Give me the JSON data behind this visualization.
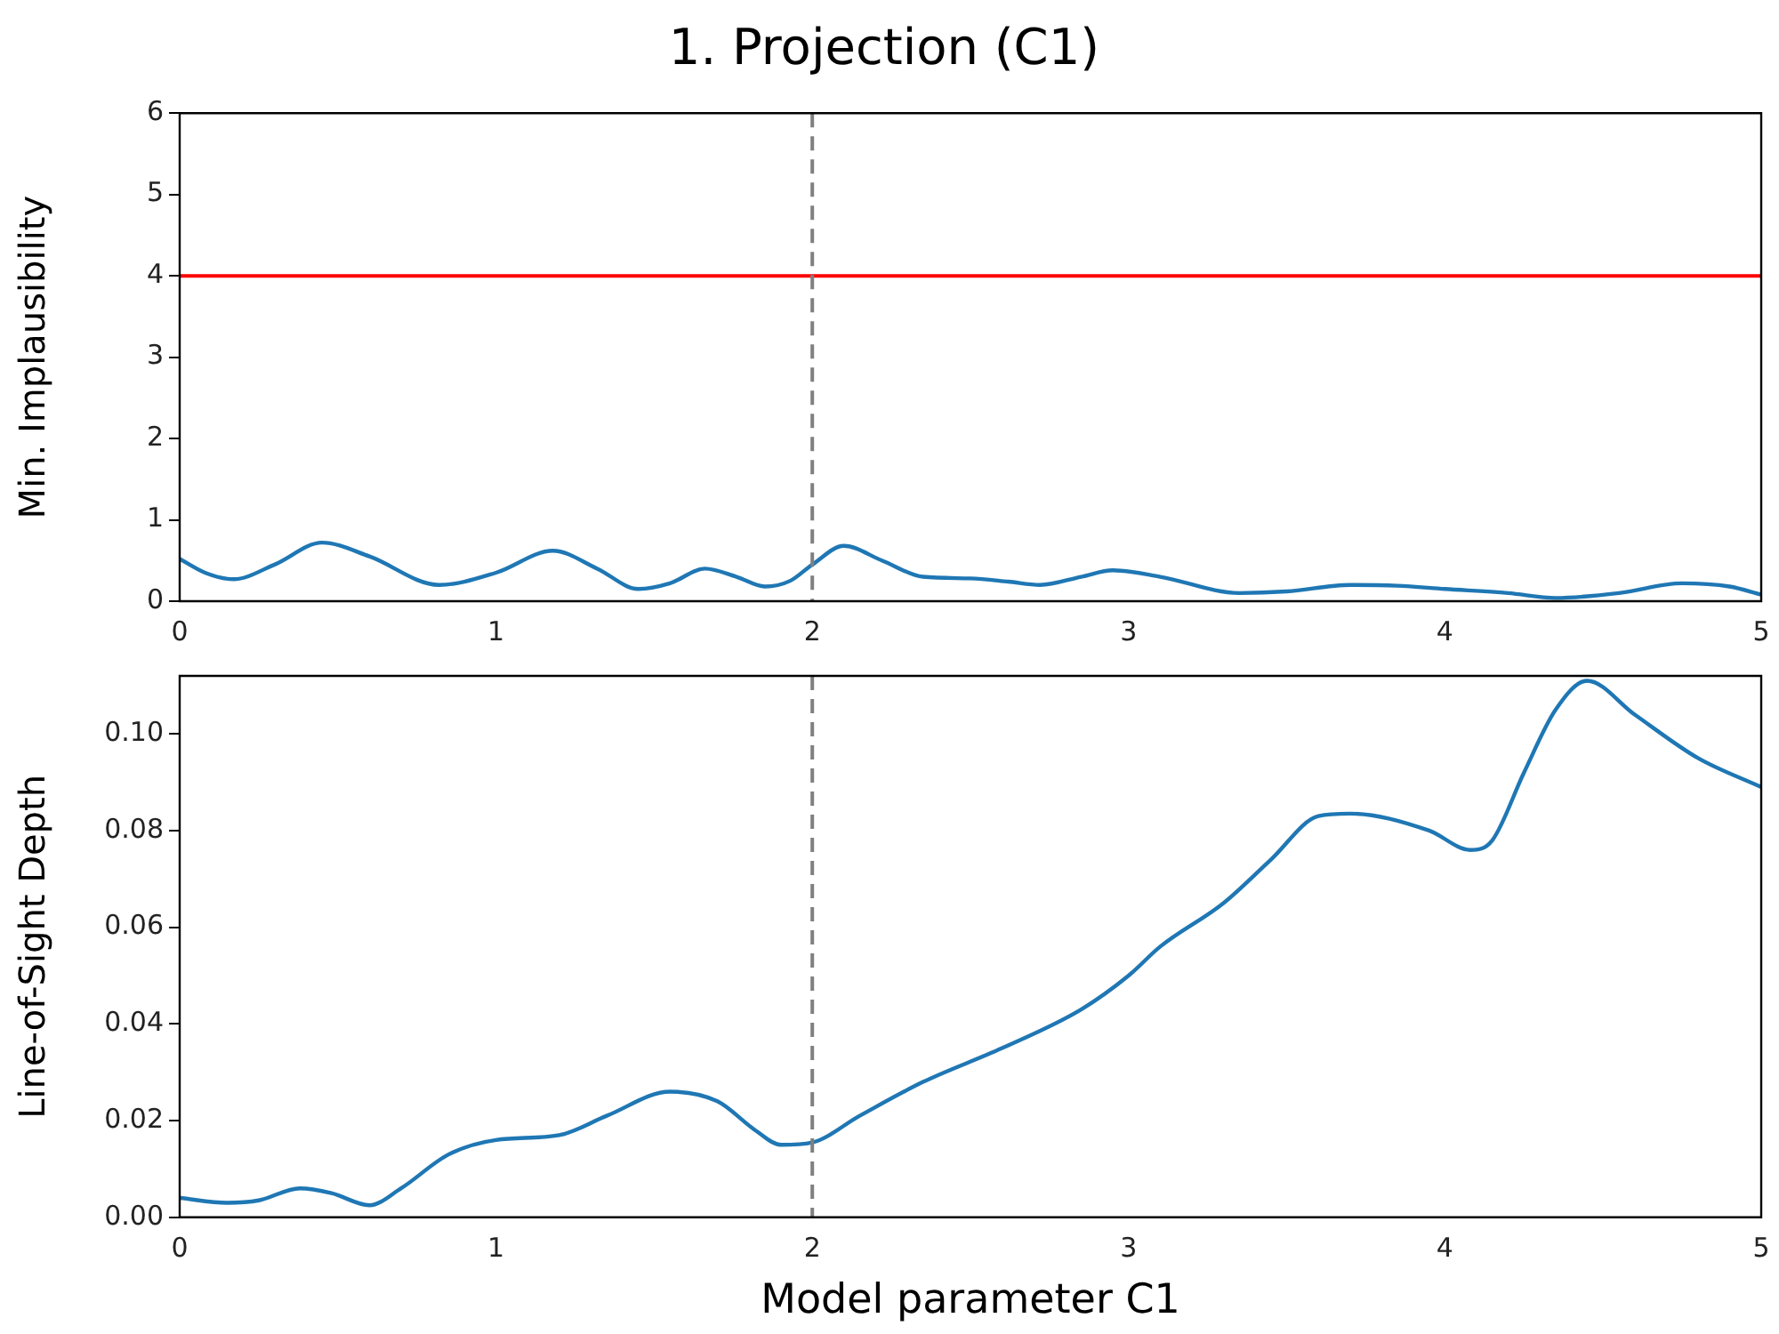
{
  "chart_data": [
    {
      "type": "line",
      "title": "1. Projection (C1)",
      "ylabel": "Min. Implausibility",
      "xlim": [
        0,
        5
      ],
      "xticks": [
        0,
        1,
        2,
        3,
        4,
        5
      ],
      "ylim": [
        0,
        6
      ],
      "yticks": [
        0,
        1,
        2,
        3,
        4,
        5,
        6
      ],
      "grid": false,
      "legend": false,
      "marker": "none",
      "line_style": "solid",
      "series": [
        {
          "color": "#1f77b4",
          "x": [
            0,
            0.08,
            0.17,
            0.3,
            0.45,
            0.6,
            0.82,
            1.0,
            1.18,
            1.32,
            1.45,
            1.55,
            1.66,
            1.76,
            1.85,
            1.93,
            2.0,
            2.1,
            2.22,
            2.35,
            2.5,
            2.62,
            2.72,
            2.85,
            2.95,
            3.1,
            3.35,
            3.5,
            3.7,
            3.85,
            4.0,
            4.2,
            4.35,
            4.55,
            4.75,
            4.9,
            5
          ],
          "values": [
            0.52,
            0.35,
            0.27,
            0.45,
            0.72,
            0.55,
            0.2,
            0.35,
            0.62,
            0.4,
            0.15,
            0.22,
            0.4,
            0.3,
            0.18,
            0.25,
            0.45,
            0.68,
            0.5,
            0.3,
            0.28,
            0.24,
            0.2,
            0.3,
            0.38,
            0.3,
            0.1,
            0.12,
            0.2,
            0.19,
            0.15,
            0.1,
            0.04,
            0.1,
            0.22,
            0.18,
            0.08
          ]
        }
      ],
      "ref_lines": [
        {
          "axis": "y",
          "value": 4,
          "color": "#ff0000",
          "line_style": "solid"
        },
        {
          "axis": "x",
          "value": 2,
          "color": "#808080",
          "line_style": "dashed"
        }
      ]
    },
    {
      "type": "line",
      "xlabel": "Model parameter C1",
      "ylabel": "Line-of-Sight Depth",
      "xlim": [
        0,
        5
      ],
      "xticks": [
        0,
        1,
        2,
        3,
        4,
        5
      ],
      "ylim": [
        0,
        0.112
      ],
      "yticks": [
        {
          "value": 0,
          "label": "0.00"
        },
        {
          "value": 0.02,
          "label": "0.02"
        },
        {
          "value": 0.04,
          "label": "0.04"
        },
        {
          "value": 0.06,
          "label": "0.06"
        },
        {
          "value": 0.08,
          "label": "0.08"
        },
        {
          "value": 0.1,
          "label": "0.10"
        }
      ],
      "grid": false,
      "legend": false,
      "marker": "none",
      "line_style": "solid",
      "series": [
        {
          "color": "#1f77b4",
          "x": [
            0,
            0.15,
            0.25,
            0.38,
            0.48,
            0.6,
            0.7,
            0.85,
            1.0,
            1.2,
            1.35,
            1.55,
            1.7,
            1.82,
            1.9,
            2.0,
            2.15,
            2.35,
            2.6,
            2.85,
            3.0,
            3.1,
            3.3,
            3.45,
            3.6,
            3.7,
            3.95,
            4.08,
            4.15,
            4.25,
            4.35,
            4.45,
            4.6,
            4.8,
            5
          ],
          "values": [
            0.004,
            0.003,
            0.0035,
            0.006,
            0.005,
            0.0025,
            0.006,
            0.013,
            0.016,
            0.017,
            0.021,
            0.026,
            0.024,
            0.018,
            0.015,
            0.0155,
            0.021,
            0.028,
            0.035,
            0.043,
            0.05,
            0.056,
            0.065,
            0.074,
            0.083,
            0.0835,
            0.08,
            0.076,
            0.078,
            0.092,
            0.105,
            0.111,
            0.104,
            0.095,
            0.089
          ]
        }
      ],
      "ref_lines": [
        {
          "axis": "x",
          "value": 2,
          "color": "#808080",
          "line_style": "dashed"
        }
      ]
    }
  ]
}
